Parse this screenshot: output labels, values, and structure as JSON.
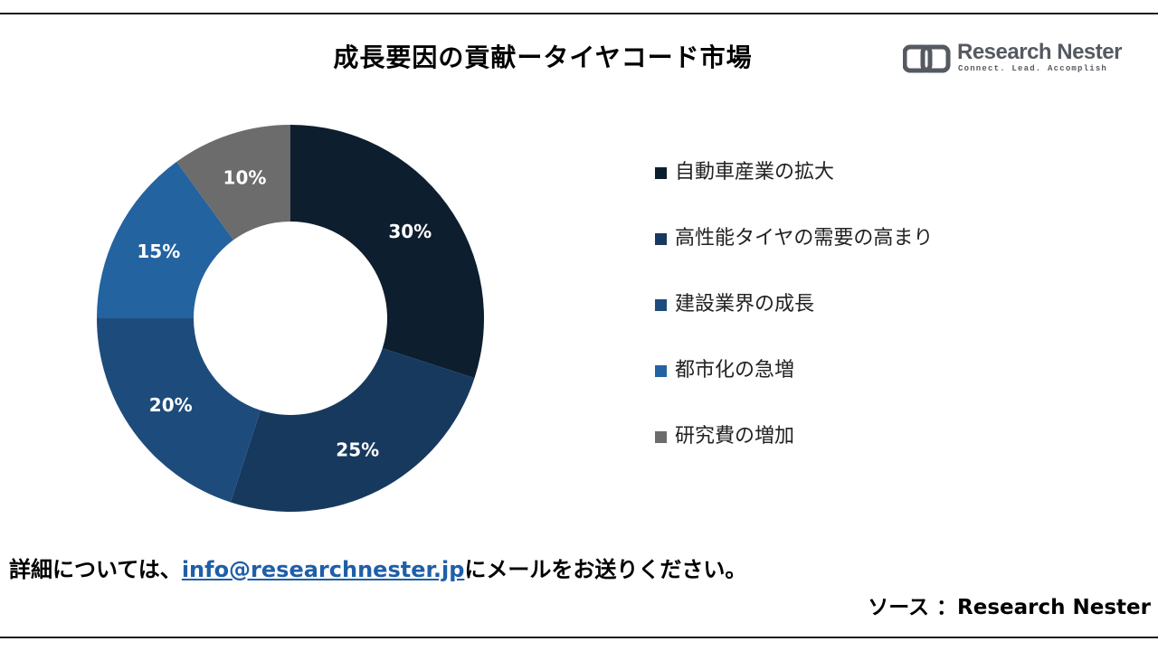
{
  "title": "成長要因の貢献ータイヤコード市場",
  "logo": {
    "name": "Research Nester",
    "tagline": "Connect. Lead. Accomplish",
    "color": "#555a60",
    "icon": "research-nester-logo-icon"
  },
  "chart_data": {
    "type": "pie",
    "style": "donut",
    "categories": [
      "自動車産業の拡大",
      "高性能タイヤの需要の高まり",
      "建設業界の成長",
      "都市化の急増",
      "研究費の増加"
    ],
    "values": [
      30,
      25,
      20,
      15,
      10
    ],
    "labels": [
      "30%",
      "25%",
      "20%",
      "15%",
      "10%"
    ],
    "colors": [
      "#0d1e2f",
      "#17395e",
      "#1d4c7c",
      "#2363a0",
      "#6c6c6c"
    ],
    "legend_position": "right"
  },
  "footer": {
    "prefix": "詳細については、",
    "email": "info@researchnester.jp",
    "suffix": "にメールをお送りください。"
  },
  "source": "ソース ：Research Nester",
  "colors": {
    "rule": "#1a1a1a",
    "link": "#1f5fa8"
  }
}
